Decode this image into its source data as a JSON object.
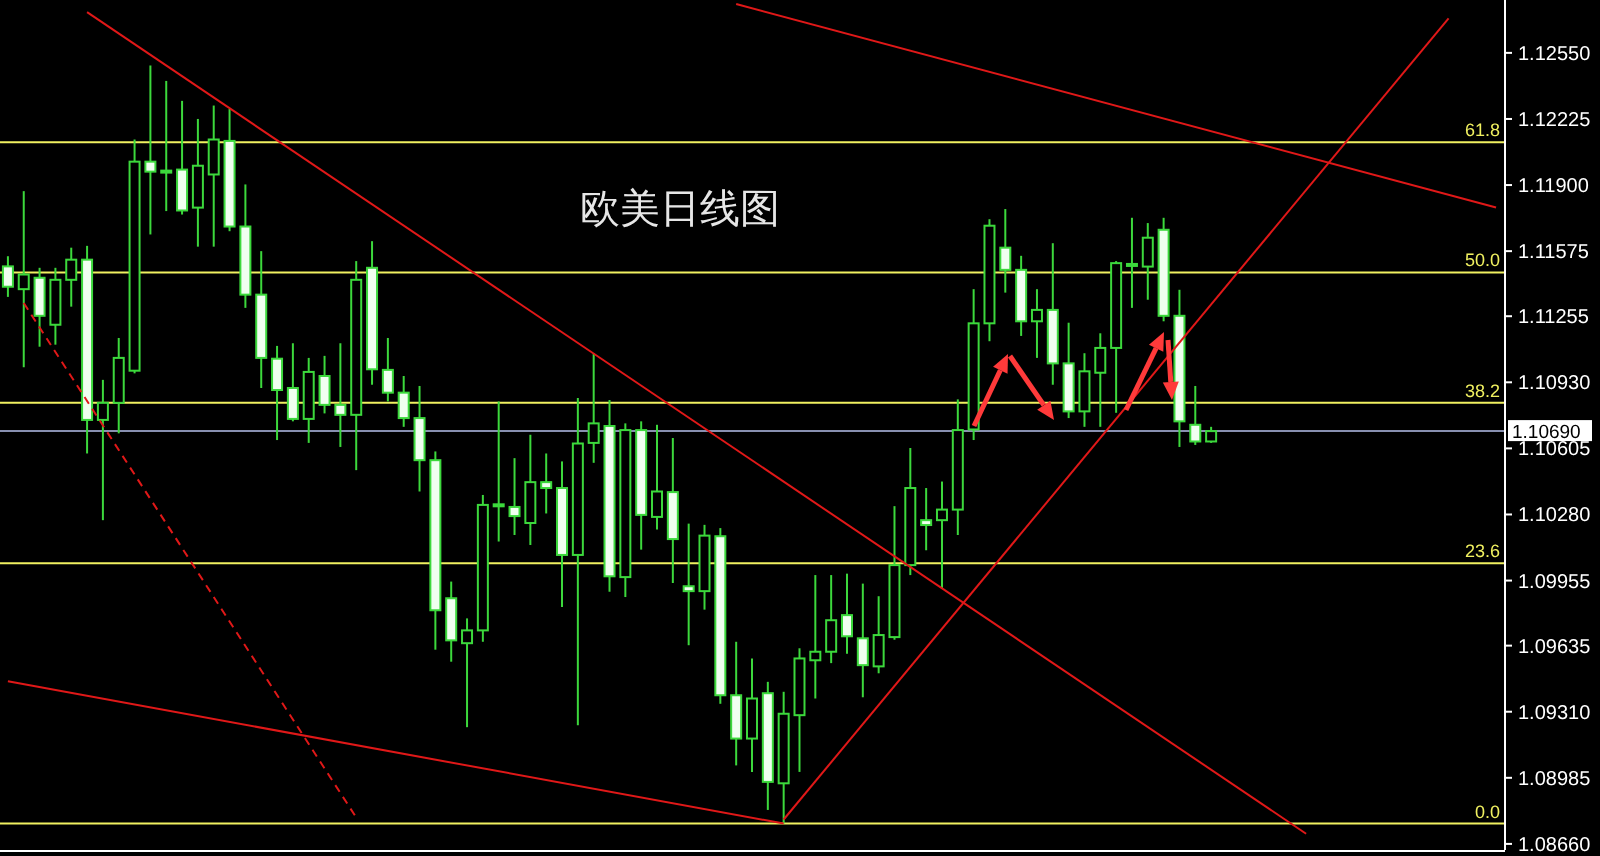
{
  "chart_data": {
    "type": "candlestick",
    "title": "欧美日线图",
    "tick_labels": "y",
    "categories": [
      null,
      null,
      null,
      null,
      null,
      null,
      null,
      null,
      null,
      null,
      null,
      null,
      null,
      null,
      null,
      null,
      null,
      null,
      null,
      null,
      null,
      null,
      null,
      null,
      null,
      null,
      null,
      null,
      null,
      null,
      null,
      null,
      null,
      null,
      null,
      null,
      null,
      null,
      null,
      null,
      null,
      null,
      null,
      null,
      null,
      null,
      null,
      null,
      null,
      null,
      null,
      null,
      null,
      null,
      null,
      null,
      null,
      null,
      null,
      null,
      null,
      null,
      null,
      null,
      null,
      null,
      null,
      null,
      null,
      null,
      null,
      null,
      null,
      null,
      null,
      null,
      null,
      null,
      null,
      null,
      null,
      null,
      null,
      null,
      null,
      null,
      null,
      null,
      null,
      null,
      null,
      null,
      null,
      null,
      null
    ],
    "ylim": [
      1.0863,
      1.1281
    ],
    "yticks": [
      {
        "value": 1.1255,
        "label": "1.12550"
      },
      1.12225,
      {
        "value": 1.119,
        "label": "1.11900"
      },
      1.11575,
      1.11255,
      {
        "value": 1.1093,
        "label": "1.10930"
      },
      1.10605,
      {
        "value": 1.1028,
        "label": "1.10280"
      },
      1.09955,
      1.09635,
      {
        "value": 1.0931,
        "label": "1.09310"
      },
      1.08985,
      {
        "value": 1.0866,
        "label": "1.08660"
      }
    ],
    "series": [
      {
        "color": "#3cd83c",
        "ohlc": [
          [
            1.115,
            1.1155,
            1.1135,
            1.114
          ],
          [
            1.11388,
            1.1187,
            1.11004,
            1.1146
          ],
          [
            1.11444,
            1.11493,
            1.11105,
            1.11257
          ],
          [
            1.11213,
            1.11493,
            1.11115,
            1.11434
          ],
          [
            1.11434,
            1.11592,
            1.11302,
            1.11533
          ],
          [
            1.11533,
            1.11601,
            1.1058,
            1.10745
          ],
          [
            1.10745,
            1.10942,
            1.10252,
            1.10829
          ],
          [
            1.10829,
            1.11148,
            1.10679,
            1.1105
          ],
          [
            1.10987,
            1.12124,
            1.10974,
            1.12015
          ],
          [
            1.12015,
            1.12488,
            1.11657,
            1.11966
          ],
          [
            1.11971,
            1.12412,
            1.11772,
            1.11966
          ],
          [
            1.11976,
            1.12314,
            1.11755,
            1.11775
          ],
          [
            1.11789,
            1.12225,
            1.11597,
            1.11995
          ],
          [
            1.11952,
            1.12291,
            1.11597,
            1.12124
          ],
          [
            1.12117,
            1.12274,
            1.11673,
            1.11696
          ],
          [
            1.11696,
            1.11903,
            1.11296,
            1.11361
          ],
          [
            1.11361,
            1.11575,
            1.10902,
            1.1105
          ],
          [
            1.11046,
            1.11109,
            1.10646,
            1.10892
          ],
          [
            1.10902,
            1.11122,
            1.10738,
            1.1075
          ],
          [
            1.1075,
            1.1105,
            1.10632,
            1.10981
          ],
          [
            1.10961,
            1.1106,
            1.10777,
            1.10819
          ],
          [
            1.10819,
            1.11122,
            1.10612,
            1.1077
          ],
          [
            1.1077,
            1.11526,
            1.10498,
            1.11434
          ],
          [
            1.11493,
            1.11624,
            1.10918,
            1.10994
          ],
          [
            1.10991,
            1.11148,
            1.10836,
            1.10879
          ],
          [
            1.10879,
            1.10961,
            1.10711,
            1.10754
          ],
          [
            1.10754,
            1.10912,
            1.10393,
            1.10547
          ],
          [
            1.10547,
            1.1059,
            1.09615,
            1.09809
          ],
          [
            1.09868,
            1.0995,
            1.09556,
            1.09661
          ],
          [
            1.09647,
            1.09769,
            1.09234,
            1.0971
          ],
          [
            1.0971,
            1.10376,
            1.09654,
            1.10327
          ],
          [
            1.1033,
            1.10836,
            1.10147,
            1.10325
          ],
          [
            1.10317,
            1.10557,
            1.10179,
            1.10272
          ],
          [
            1.10238,
            1.10672,
            1.1013,
            1.10439
          ],
          [
            1.10439,
            1.1058,
            1.10285,
            1.1041
          ],
          [
            1.1041,
            1.10541,
            1.09825,
            1.10081
          ],
          [
            1.10081,
            1.10853,
            1.09243,
            1.10629
          ],
          [
            1.10632,
            1.11073,
            1.10534,
            1.10728
          ],
          [
            1.10715,
            1.10843,
            1.099,
            1.09976
          ],
          [
            1.09972,
            1.10728,
            1.09874,
            1.10695
          ],
          [
            1.10695,
            1.10738,
            1.10107,
            1.10278
          ],
          [
            1.10268,
            1.10721,
            1.10206,
            1.10393
          ],
          [
            1.1039,
            1.10656,
            1.09943,
            1.10159
          ],
          [
            1.09927,
            1.10235,
            1.09637,
            1.09903
          ],
          [
            1.09903,
            1.10229,
            1.09812,
            1.10176
          ],
          [
            1.10173,
            1.10213,
            1.09349,
            1.09391
          ],
          [
            1.09391,
            1.09654,
            1.09046,
            1.09178
          ],
          [
            1.09178,
            1.09572,
            1.09014,
            1.09375
          ],
          [
            1.09401,
            1.09457,
            1.08827,
            1.08965
          ],
          [
            1.08958,
            1.09408,
            1.0876,
            1.093
          ],
          [
            1.09293,
            1.09622,
            1.09014,
            1.09572
          ],
          [
            1.09563,
            1.09982,
            1.09375,
            1.09605
          ],
          [
            1.09605,
            1.09982,
            1.09549,
            1.0976
          ],
          [
            1.09785,
            1.09989,
            1.09595,
            1.09681
          ],
          [
            1.09671,
            1.0994,
            1.09381,
            1.09539
          ],
          [
            1.09533,
            1.09878,
            1.09499,
            1.09687
          ],
          [
            1.09677,
            1.10321,
            1.09664,
            1.10031
          ],
          [
            1.10031,
            1.10607,
            1.09982,
            1.1041
          ],
          [
            1.10252,
            1.1041,
            1.10104,
            1.10228
          ],
          [
            1.10252,
            1.10442,
            1.09917,
            1.10304
          ],
          [
            1.10304,
            1.10846,
            1.10179,
            1.10695
          ],
          [
            1.10698,
            1.11388,
            1.10646,
            1.1122
          ],
          [
            1.1122,
            1.11732,
            1.11132,
            1.117
          ],
          [
            1.11592,
            1.11782,
            1.11371,
            1.11483
          ],
          [
            1.11483,
            1.11552,
            1.11158,
            1.1123
          ],
          [
            1.1123,
            1.11388,
            1.1105,
            1.11286
          ],
          [
            1.11286,
            1.11614,
            1.10918,
            1.11023
          ],
          [
            1.11023,
            1.11223,
            1.10754,
            1.10787
          ],
          [
            1.10787,
            1.11073,
            1.10711,
            1.10984
          ],
          [
            1.10977,
            1.11171,
            1.10711,
            1.11099
          ],
          [
            1.11099,
            1.11526,
            1.1078,
            1.11516
          ],
          [
            1.11512,
            1.11739,
            1.11296,
            1.11505
          ],
          [
            1.11499,
            1.11713,
            1.11336,
            1.11641
          ],
          [
            1.1168,
            1.11739,
            1.1123,
            1.11257
          ],
          [
            1.11257,
            1.11385,
            1.10612,
            1.10738
          ],
          [
            1.10721,
            1.10912,
            1.10622,
            1.10639
          ],
          [
            1.10639,
            1.10711,
            1.10632,
            1.1069
          ],
          null,
          null,
          null,
          null,
          null,
          null,
          null,
          null,
          null,
          null,
          null,
          null,
          null,
          null,
          null,
          null,
          null,
          null
        ]
      },
      {
        "type": "line",
        "color": "#e01818",
        "values": [
          null,
          null,
          null,
          null,
          null,
          1.1275,
          null,
          null,
          null,
          null,
          null,
          null,
          null,
          null,
          null,
          null,
          null,
          null,
          null,
          null,
          null,
          null,
          null,
          null,
          null,
          null,
          null,
          null,
          null,
          null,
          null,
          null,
          null,
          null,
          null,
          null,
          null,
          null,
          null,
          null,
          null,
          null,
          null,
          null,
          null,
          null,
          null,
          null,
          null,
          null,
          null,
          null,
          null,
          null,
          null,
          null,
          null,
          null,
          null,
          null,
          null,
          null,
          null,
          null,
          null,
          null,
          null,
          null,
          null,
          null,
          null,
          null,
          null,
          null,
          null,
          null,
          null,
          null,
          null,
          null,
          null,
          null,
          1.0871,
          null,
          null,
          null,
          null,
          null,
          null,
          null,
          null,
          null,
          null,
          null,
          null
        ]
      },
      {
        "type": "line",
        "color": "#e01818",
        "values": [
          null,
          null,
          null,
          null,
          null,
          null,
          null,
          null,
          null,
          null,
          null,
          null,
          null,
          null,
          null,
          null,
          null,
          null,
          null,
          null,
          null,
          null,
          null,
          null,
          null,
          null,
          null,
          null,
          null,
          null,
          null,
          null,
          null,
          null,
          null,
          null,
          null,
          null,
          null,
          null,
          null,
          null,
          null,
          null,
          null,
          null,
          1.1279,
          null,
          null,
          null,
          null,
          null,
          null,
          null,
          null,
          null,
          null,
          null,
          null,
          null,
          null,
          null,
          null,
          null,
          null,
          null,
          null,
          null,
          null,
          null,
          null,
          null,
          null,
          null,
          null,
          null,
          null,
          null,
          null,
          null,
          null,
          null,
          null,
          null,
          null,
          null,
          null,
          null,
          null,
          null,
          null,
          null,
          null,
          null,
          1.1179
        ]
      },
      {
        "type": "line",
        "color": "#e01818",
        "values": [
          1.0946,
          null,
          null,
          null,
          null,
          null,
          null,
          null,
          null,
          null,
          null,
          null,
          null,
          null,
          null,
          null,
          null,
          null,
          null,
          null,
          null,
          null,
          null,
          null,
          null,
          null,
          null,
          null,
          null,
          null,
          null,
          null,
          null,
          null,
          null,
          null,
          null,
          null,
          null,
          null,
          null,
          null,
          null,
          null,
          null,
          null,
          null,
          null,
          null,
          1.0876,
          null,
          null,
          null,
          null,
          null,
          null,
          null,
          null,
          null,
          null,
          null,
          null,
          null,
          null,
          null,
          null,
          null,
          null,
          null,
          null,
          null,
          null,
          null,
          null,
          null,
          null,
          null,
          null,
          null,
          null,
          null,
          null,
          null,
          null,
          null,
          null,
          null,
          null,
          null,
          null,
          null,
          null,
          null,
          null,
          null
        ]
      },
      {
        "type": "line",
        "color": "#e01818",
        "values": [
          null,
          null,
          null,
          null,
          null,
          null,
          null,
          null,
          null,
          null,
          null,
          null,
          null,
          null,
          null,
          null,
          null,
          null,
          null,
          null,
          null,
          null,
          null,
          null,
          null,
          null,
          null,
          null,
          null,
          null,
          null,
          null,
          null,
          null,
          null,
          null,
          null,
          null,
          null,
          null,
          null,
          null,
          null,
          null,
          null,
          null,
          null,
          null,
          null,
          1.0878,
          null,
          null,
          null,
          null,
          null,
          null,
          null,
          null,
          null,
          null,
          null,
          null,
          null,
          null,
          null,
          null,
          null,
          null,
          null,
          null,
          null,
          null,
          null,
          null,
          null,
          null,
          null,
          null,
          null,
          null,
          null,
          null,
          null,
          null,
          null,
          null,
          null,
          null,
          null,
          null,
          null,
          1.1272,
          null,
          null,
          null
        ]
      },
      {
        "type": "line",
        "color": "#e01818",
        "line_style": "dashed",
        "values": [
          null,
          1.1132,
          null,
          null,
          null,
          null,
          null,
          null,
          null,
          null,
          null,
          null,
          null,
          null,
          null,
          null,
          null,
          null,
          null,
          null,
          null,
          null,
          1.0879,
          null,
          null,
          null,
          null,
          null,
          null,
          null,
          null,
          null,
          null,
          null,
          null,
          null,
          null,
          null,
          null,
          null,
          null,
          null,
          null,
          null,
          null,
          null,
          null,
          null,
          null,
          null,
          null,
          null,
          null,
          null,
          null,
          null,
          null,
          null,
          null,
          null,
          null,
          null,
          null,
          null,
          null,
          null,
          null,
          null,
          null,
          null,
          null,
          null,
          null,
          null,
          null,
          null,
          null,
          null,
          null,
          null,
          null,
          null,
          null,
          null,
          null,
          null,
          null,
          null,
          null,
          null,
          null,
          null,
          null,
          null,
          null
        ]
      }
    ],
    "ref_lines": [
      {
        "axis": "y",
        "value": 1.1211,
        "color": "#f0f060"
      },
      {
        "axis": "y",
        "value": 1.1147,
        "color": "#f0f060"
      },
      {
        "axis": "y",
        "value": 1.1083,
        "color": "#f0f060"
      },
      {
        "axis": "y",
        "value": 1.1004,
        "color": "#f0f060"
      },
      {
        "axis": "y",
        "value": 1.0876,
        "color": "#f0f060"
      },
      {
        "axis": "y",
        "value": 1.1069,
        "label": "1.10690",
        "color": "#8890b0"
      }
    ],
    "annotations": [
      {
        "text": "61.8",
        "y": 1.1211
      },
      {
        "text": "50.0",
        "y": 1.1147
      },
      {
        "text": "38.2",
        "y": 1.1083
      },
      {
        "text": "23.6",
        "y": 1.1004
      },
      {
        "text": "0.0",
        "y": 1.0876
      }
    ]
  }
}
